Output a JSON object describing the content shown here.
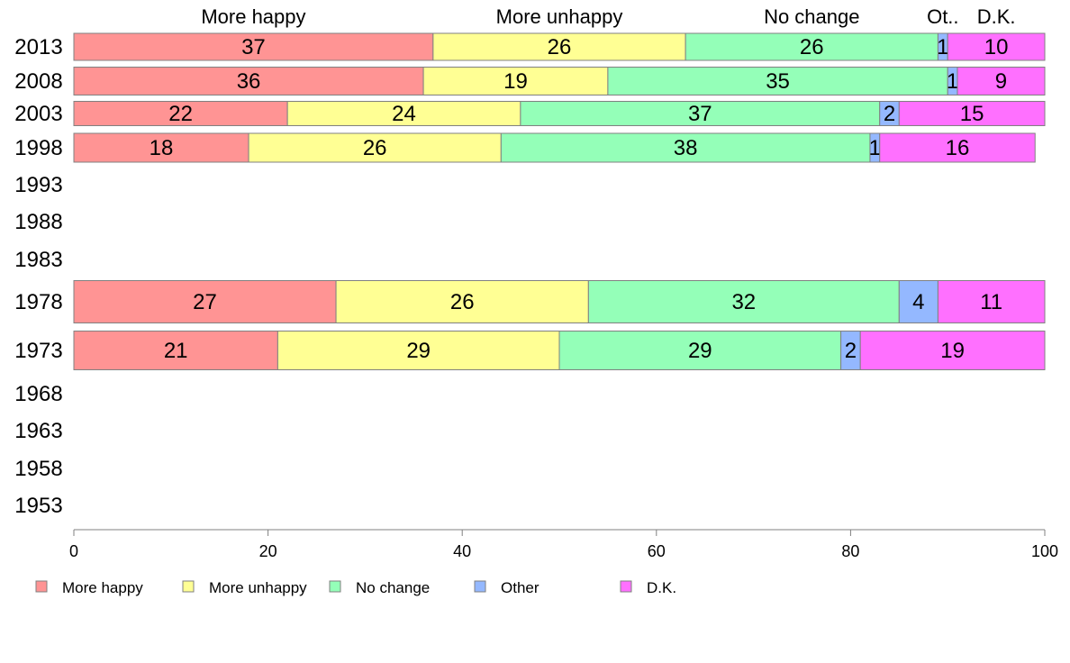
{
  "chart_data": {
    "type": "bar",
    "orientation": "horizontal",
    "stacked": true,
    "xlim": [
      0,
      100
    ],
    "xticks": [
      0,
      20,
      40,
      60,
      80,
      100
    ],
    "grid": false,
    "legend_position": "bottom",
    "categories": [
      "2013",
      "2008",
      "2003",
      "1998",
      "1993",
      "1988",
      "1983",
      "1978",
      "1973",
      "1968",
      "1963",
      "1958",
      "1953"
    ],
    "series": [
      {
        "name": "More happy",
        "color": "#ff9494",
        "values": [
          37,
          36,
          22,
          18,
          null,
          null,
          null,
          27,
          21,
          null,
          null,
          null,
          null
        ]
      },
      {
        "name": "More unhappy",
        "color": "#ffff94",
        "values": [
          26,
          19,
          24,
          26,
          null,
          null,
          null,
          26,
          29,
          null,
          null,
          null,
          null
        ]
      },
      {
        "name": "No change",
        "color": "#94ffb8",
        "values": [
          26,
          35,
          37,
          38,
          null,
          null,
          null,
          32,
          29,
          null,
          null,
          null,
          null
        ]
      },
      {
        "name": "Other",
        "color": "#94b8ff",
        "values": [
          1,
          1,
          2,
          1,
          null,
          null,
          null,
          4,
          2,
          null,
          null,
          null,
          null
        ]
      },
      {
        "name": "D.K.",
        "color": "#ff70ff",
        "values": [
          10,
          9,
          15,
          16,
          null,
          null,
          null,
          11,
          19,
          null,
          null,
          null,
          null
        ]
      }
    ],
    "top_labels": [
      "More happy",
      "More unhappy",
      "No change",
      "Ot..",
      "D.K."
    ]
  }
}
